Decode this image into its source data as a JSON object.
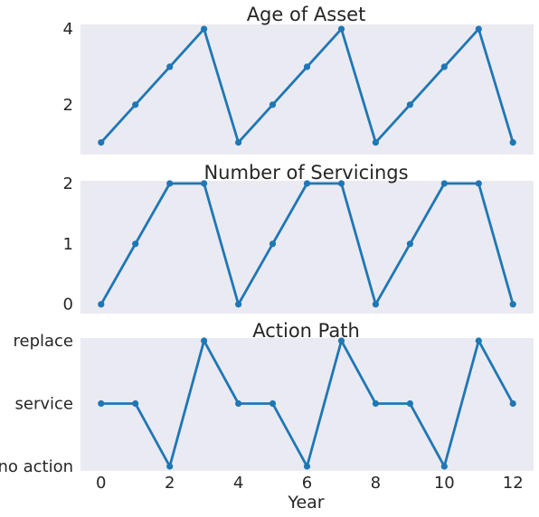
{
  "chart_data": [
    {
      "type": "line",
      "title": "Age of Asset",
      "x": [
        0,
        1,
        2,
        3,
        4,
        5,
        6,
        7,
        8,
        9,
        10,
        11,
        12
      ],
      "series": [
        {
          "values": [
            1,
            2,
            3,
            4,
            1,
            2,
            3,
            4,
            1,
            2,
            3,
            4,
            1
          ]
        }
      ],
      "ylim": [
        0.8,
        4.05
      ],
      "yticks": [
        2,
        4
      ],
      "ytick_labels": [
        "2",
        "4"
      ],
      "grid": false,
      "color": "#1f77b4"
    },
    {
      "type": "line",
      "title": "Number of Servicings",
      "x": [
        0,
        1,
        2,
        3,
        4,
        5,
        6,
        7,
        8,
        9,
        10,
        11,
        12
      ],
      "series": [
        {
          "values": [
            0,
            1,
            2,
            2,
            0,
            1,
            2,
            2,
            0,
            1,
            2,
            2,
            0
          ]
        }
      ],
      "ylim": [
        -0.08,
        2.0
      ],
      "yticks": [
        0,
        1,
        2
      ],
      "ytick_labels": [
        "0",
        "1",
        "2"
      ],
      "grid": false,
      "color": "#1f77b4"
    },
    {
      "type": "line",
      "title": "Action Path",
      "x": [
        0,
        1,
        2,
        3,
        4,
        5,
        6,
        7,
        8,
        9,
        10,
        11,
        12
      ],
      "series": [
        {
          "values": [
            "service",
            "service",
            "no action",
            "replace",
            "service",
            "service",
            "no action",
            "replace",
            "service",
            "service",
            "no action",
            "replace",
            "service"
          ]
        }
      ],
      "categories_y": [
        "no action",
        "service",
        "replace"
      ],
      "yticks": [
        "no action",
        "service",
        "replace"
      ],
      "ytick_labels": [
        "no action",
        "service",
        "replace"
      ],
      "ylim": [
        0,
        2
      ],
      "xlim": [
        -0.6,
        12.6
      ],
      "xticks": [
        0,
        2,
        4,
        6,
        8,
        10,
        12
      ],
      "xtick_labels": [
        "0",
        "2",
        "4",
        "6",
        "8",
        "10",
        "12"
      ],
      "xlabel": "Year",
      "grid": false,
      "color": "#1f77b4"
    }
  ]
}
